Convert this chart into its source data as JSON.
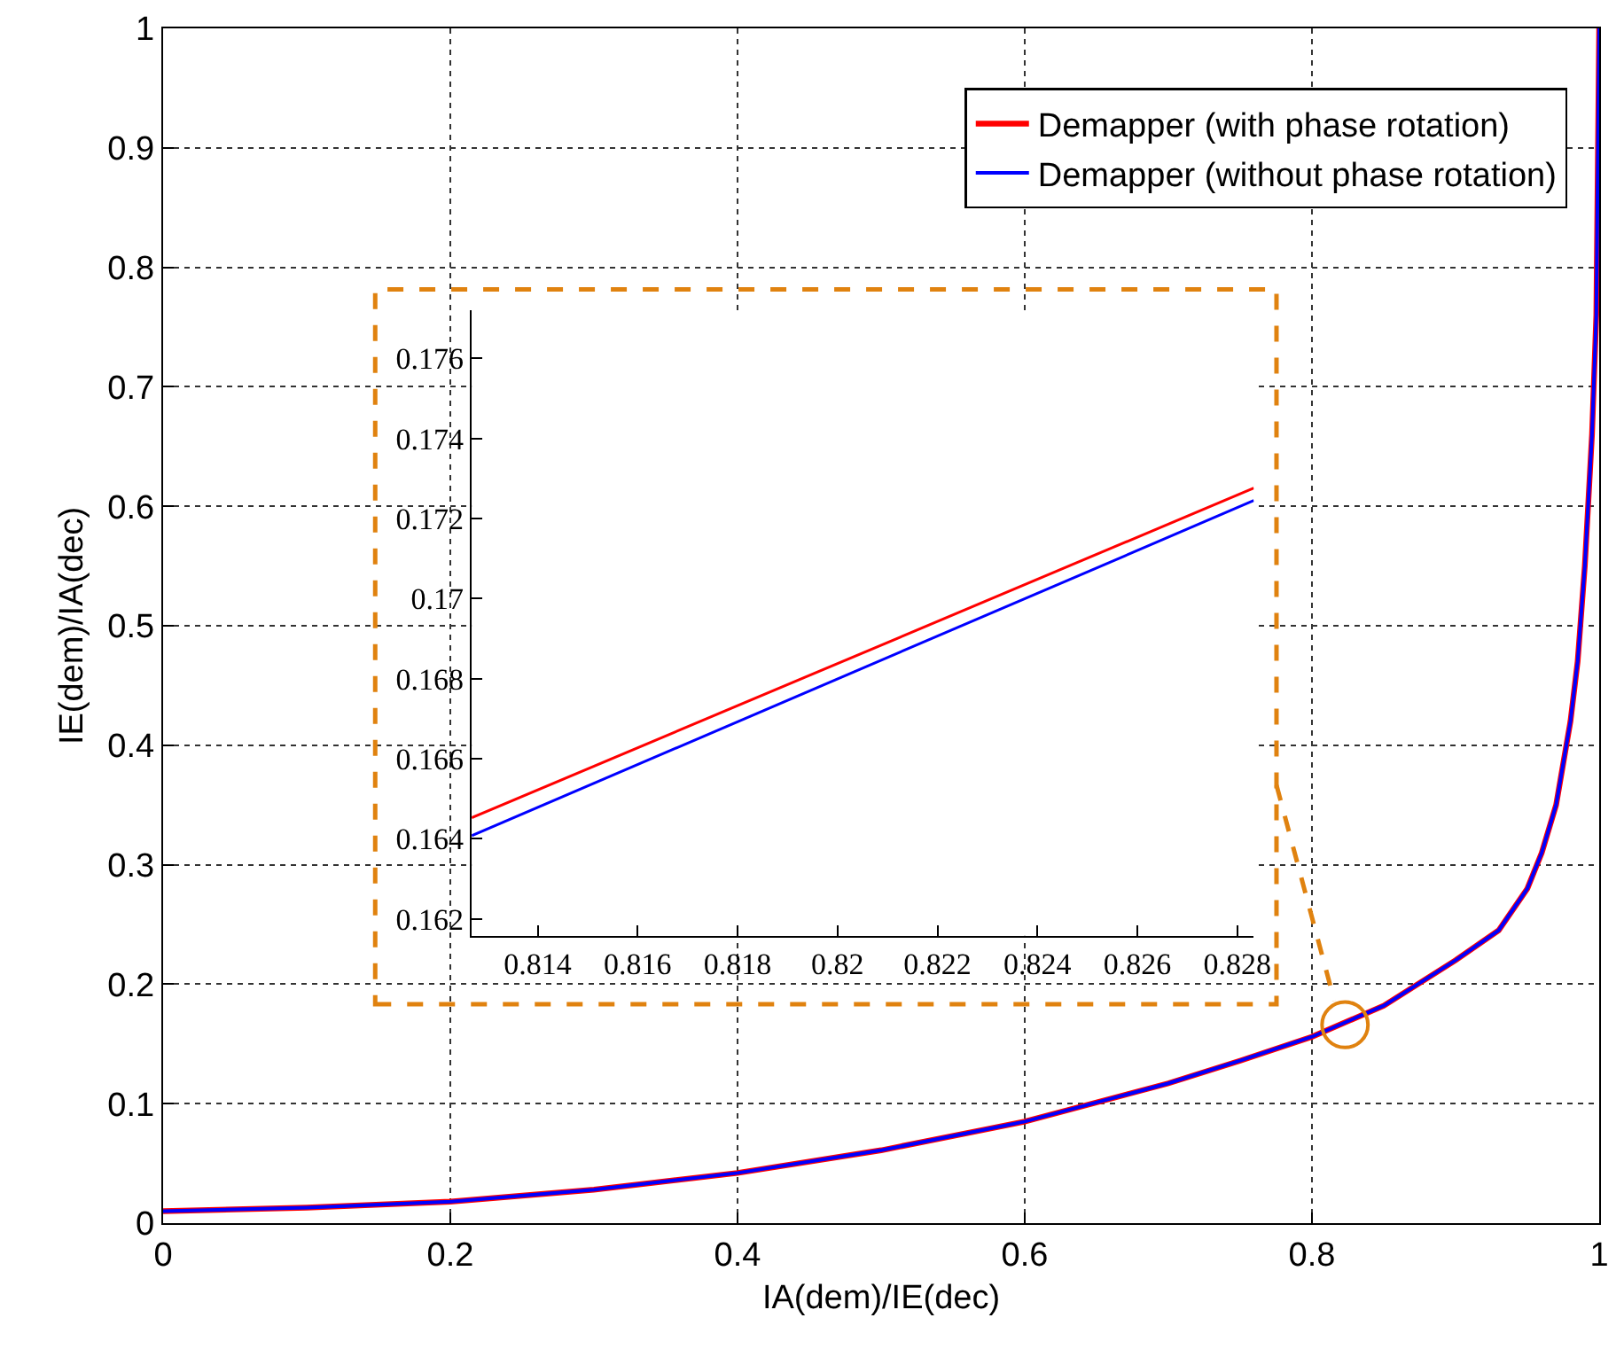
{
  "chart_data": [
    {
      "type": "line",
      "xlabel": "IA(dem)/IE(dec)",
      "ylabel": "IE(dem)/IA(dec)",
      "xlim": [
        0,
        1
      ],
      "ylim": [
        0,
        1
      ],
      "xticks": [
        0,
        0.2,
        0.4,
        0.6,
        0.8,
        1
      ],
      "yticks": [
        0,
        0.1,
        0.2,
        0.3,
        0.4,
        0.5,
        0.6,
        0.7,
        0.8,
        0.9,
        1
      ],
      "grid": true,
      "legend": "top right",
      "line_style": "solid",
      "x": [
        0,
        0.1,
        0.2,
        0.3,
        0.4,
        0.5,
        0.6,
        0.7,
        0.75,
        0.8,
        0.85,
        0.9,
        0.93,
        0.95,
        0.96,
        0.97,
        0.98,
        0.985,
        0.99,
        0.995,
        0.998,
        1
      ],
      "series": [
        {
          "name": "Demapper (with phase rotation)",
          "color": "#ff0000",
          "values": [
            0.01,
            0.013,
            0.018,
            0.028,
            0.042,
            0.061,
            0.085,
            0.117,
            0.136,
            0.156,
            0.182,
            0.22,
            0.245,
            0.28,
            0.31,
            0.35,
            0.42,
            0.47,
            0.55,
            0.66,
            0.76,
            1
          ]
        },
        {
          "name": "Demapper (without phase rotation)",
          "color": "#0000ff",
          "values": [
            0.01,
            0.013,
            0.018,
            0.028,
            0.042,
            0.061,
            0.085,
            0.117,
            0.136,
            0.156,
            0.182,
            0.22,
            0.245,
            0.28,
            0.31,
            0.35,
            0.42,
            0.47,
            0.55,
            0.66,
            0.76,
            1
          ]
        }
      ]
    },
    {
      "type": "line",
      "xlim": [
        0.81268,
        0.82833
      ],
      "ylim": [
        0.16158,
        0.1772
      ],
      "xticks": [
        0.814,
        0.816,
        0.818,
        {
          "value": 0.82,
          "label": "0.82"
        },
        0.822,
        0.824,
        0.826,
        0.828
      ],
      "yticks": [
        0.162,
        0.164,
        0.166,
        0.168,
        {
          "value": 0.17,
          "label": "0.17"
        },
        0.172,
        0.174,
        0.176
      ],
      "line_style": "solid",
      "x": [
        0.81268,
        0.82833
      ],
      "series": [
        {
          "color": "#ff0000",
          "values": [
            0.16453,
            0.17276
          ]
        },
        {
          "color": "#0000ff",
          "values": [
            0.16408,
            0.17245
          ]
        }
      ]
    }
  ]
}
